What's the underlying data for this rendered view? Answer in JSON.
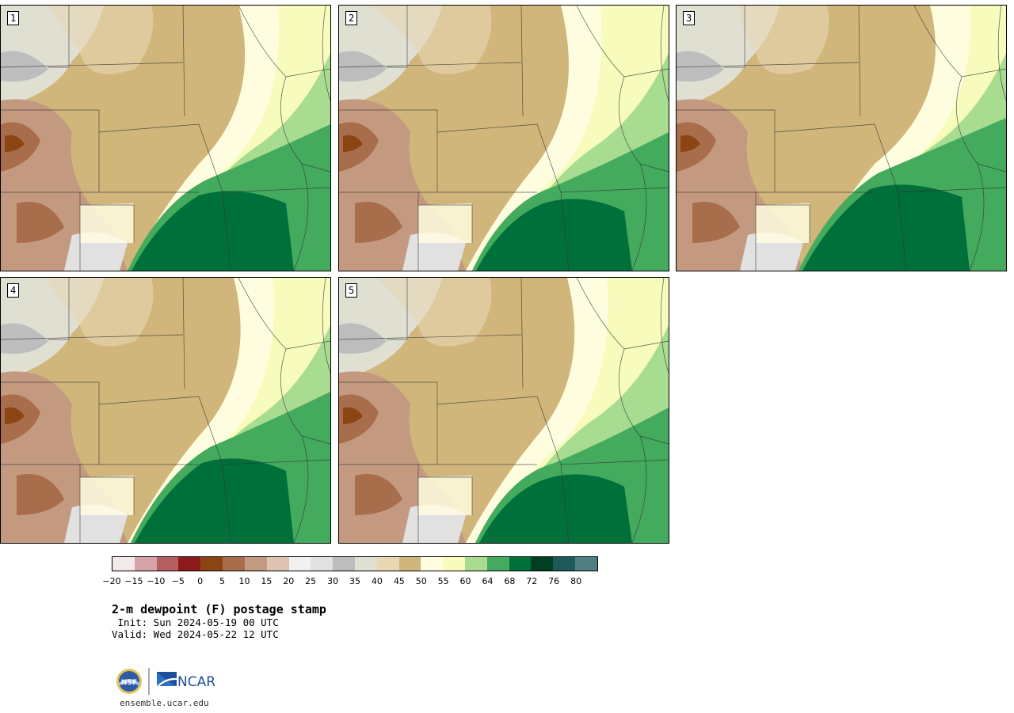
{
  "stamps": [
    {
      "label": "1",
      "variant": 0
    },
    {
      "label": "2",
      "variant": 1
    },
    {
      "label": "3",
      "variant": 2
    },
    {
      "label": "4",
      "variant": 3
    },
    {
      "label": "5",
      "variant": 4
    }
  ],
  "colorbar": {
    "colors": [
      "#f3e9e9",
      "#d5a3a8",
      "#b65f62",
      "#8c1a1c",
      "#8b4513",
      "#a86d4a",
      "#c39a80",
      "#dfc4b2",
      "#f1f1f1",
      "#e1e1e1",
      "#bdbdbd",
      "#dfdfd2",
      "#e8d7b2",
      "#d0b67a",
      "#fffde0",
      "#f7fbbb",
      "#a8dc90",
      "#43aa5e",
      "#00703a",
      "#003f23",
      "#1f5a5a",
      "#4f7f80"
    ],
    "tick_labels": [
      "−20",
      "−15",
      "−10",
      "−5",
      "0",
      "5",
      "10",
      "15",
      "20",
      "25",
      "30",
      "35",
      "40",
      "45",
      "50",
      "55",
      "60",
      "64",
      "68",
      "72",
      "76",
      "80"
    ]
  },
  "title": "2-m dewpoint (F) postage stamp",
  "init_line": " Init: Sun 2024-05-19 00 UTC",
  "valid_line": "Valid: Wed 2024-05-22 12 UTC",
  "logos": {
    "nsf": "NSF",
    "ncar": "NCAR"
  },
  "url": "ensemble.ucar.edu"
}
